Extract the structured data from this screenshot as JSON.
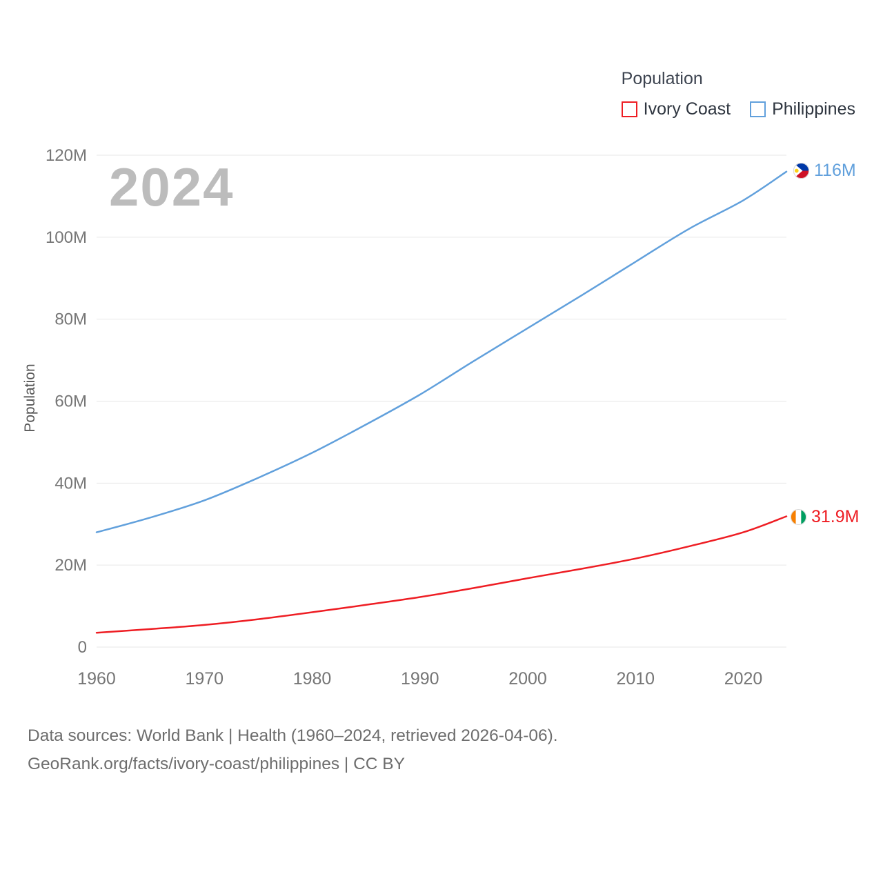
{
  "legend": {
    "title": "Population",
    "items": [
      {
        "label": "Ivory Coast",
        "color": "#ee1d23"
      },
      {
        "label": "Philippines",
        "color": "#61a0dc"
      }
    ]
  },
  "watermark": "2024",
  "footer": {
    "line1": "Data sources: World Bank | Health (1960–2024, retrieved 2026-04-06).",
    "line2": "GeoRank.org/facts/ivory-coast/philippines | CC BY"
  },
  "chart_data": {
    "type": "line",
    "title": "Population",
    "xlabel": "",
    "ylabel": "Population",
    "grid": "horizontal",
    "legend_position": "top-right",
    "xlim": [
      1960,
      2024
    ],
    "ylim": [
      0,
      120
    ],
    "x": [
      1960,
      1965,
      1970,
      1975,
      1980,
      1985,
      1990,
      1995,
      2000,
      2005,
      2010,
      2015,
      2020,
      2024
    ],
    "series": [
      {
        "name": "Ivory Coast",
        "color": "#ee1d23",
        "end_label": "31.9M",
        "values": [
          3.5,
          4.4,
          5.4,
          6.8,
          8.5,
          10.3,
          12.2,
          14.4,
          16.8,
          19.1,
          21.6,
          24.6,
          28.0,
          31.9
        ]
      },
      {
        "name": "Philippines",
        "color": "#61a0dc",
        "end_label": "116M",
        "values": [
          28.0,
          31.6,
          35.8,
          41.3,
          47.4,
          54.3,
          61.6,
          69.8,
          77.8,
          85.8,
          94.0,
          102.1,
          109.0,
          116.0
        ]
      }
    ],
    "xticks": [
      1960,
      1970,
      1980,
      1990,
      2000,
      2010,
      2020
    ],
    "yticks": [
      {
        "v": 0,
        "label": "0"
      },
      {
        "v": 20,
        "label": "20M"
      },
      {
        "v": 40,
        "label": "40M"
      },
      {
        "v": 60,
        "label": "60M"
      },
      {
        "v": 80,
        "label": "80M"
      },
      {
        "v": 100,
        "label": "100M"
      },
      {
        "v": 120,
        "label": "120M"
      }
    ]
  }
}
